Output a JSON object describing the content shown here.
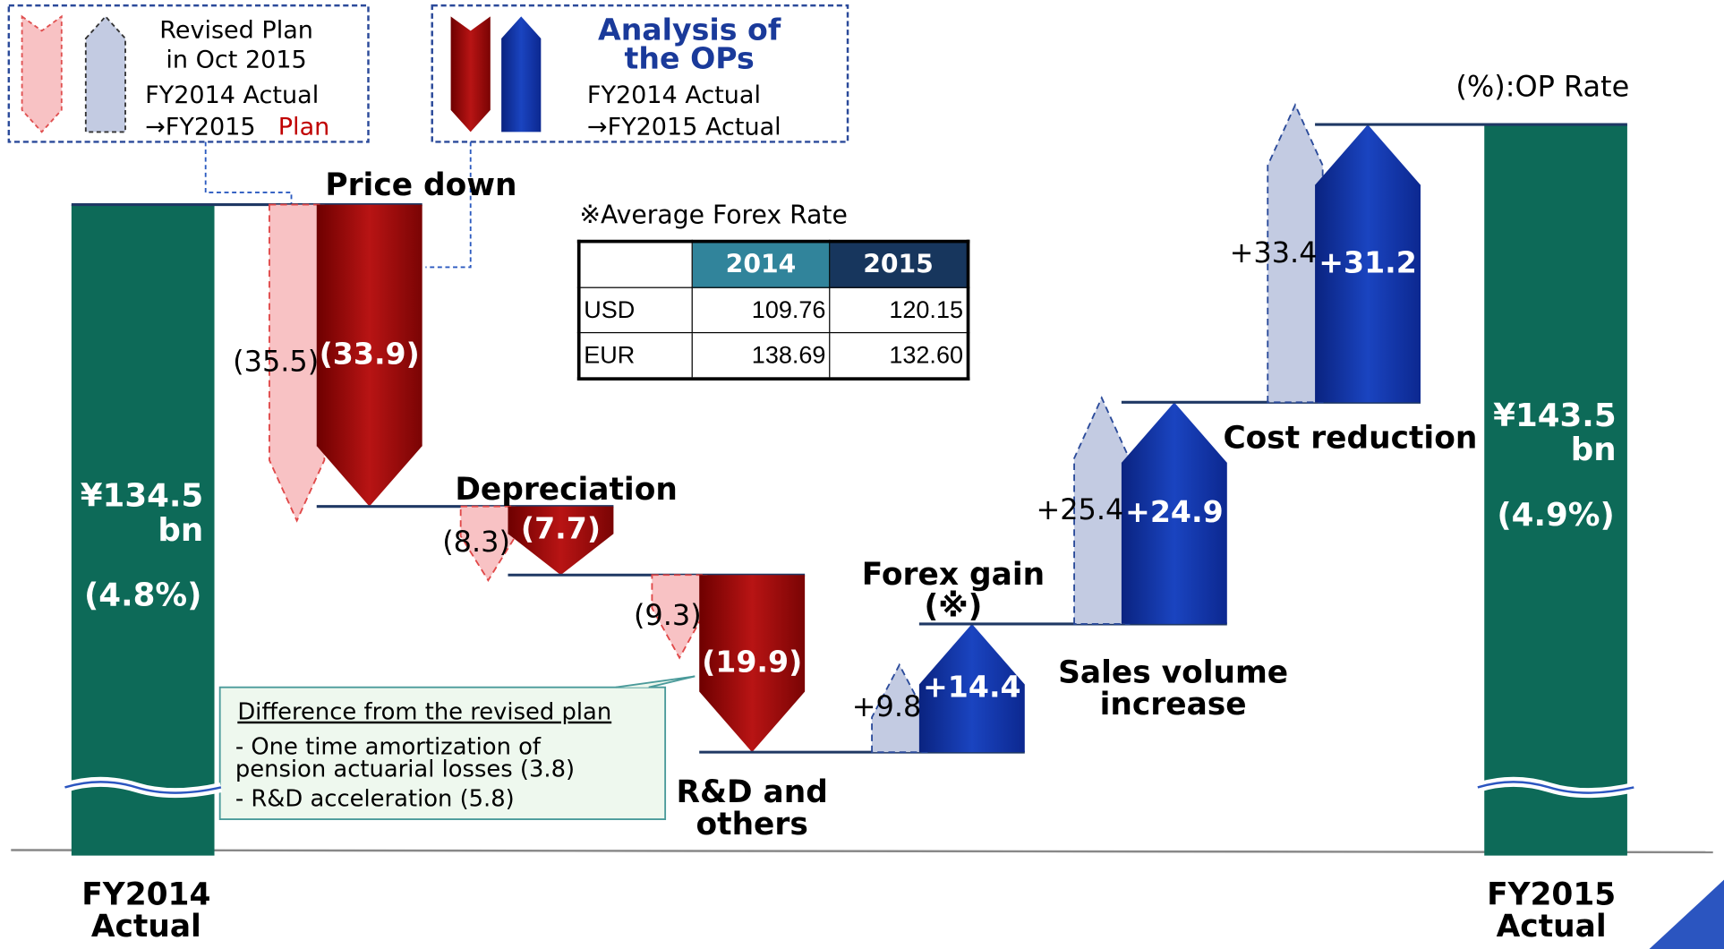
{
  "chart_data": {
    "type": "waterfall",
    "legend": {
      "plan": {
        "lines": [
          "Revised Plan",
          "in Oct 2015",
          "FY2014 Actual"
        ],
        "tail": "→FY2015",
        "tail_highlight": "Plan"
      },
      "actual": {
        "title": "Analysis of\nthe OPs",
        "lines": [
          "FY2014 Actual",
          "→FY2015 Actual"
        ]
      }
    },
    "note": "(%):OP Rate",
    "start": {
      "label": "FY2014\nActual",
      "value": 134.5,
      "value_label": "¥134.5\nbn",
      "rate": 4.8,
      "rate_label": "(4.8%)",
      "color": "#0d6a58"
    },
    "end": {
      "label": "FY2015\nActual",
      "value": 143.5,
      "value_label": "¥143.5\nbn",
      "rate": 4.9,
      "rate_label": "(4.9%)",
      "color": "#0d6a58"
    },
    "categories": [
      "Price down",
      "Depreciation",
      "R&D and\nothers",
      "Forex gain\n(※)",
      "Sales volume\nincrease",
      "Cost reduction"
    ],
    "series": [
      {
        "values": [
          -35.5,
          -8.3,
          -9.3,
          9.8,
          25.4,
          33.4
        ],
        "value_labels": [
          "(35.5)",
          "(8.3)",
          "(9.3)",
          "+9.8",
          "+25.4",
          "+33.4"
        ],
        "color_down": "#f8c2c4",
        "color_up": "#c3cbe2"
      },
      {
        "values": [
          -33.9,
          -7.7,
          -19.9,
          14.4,
          24.9,
          31.2
        ],
        "value_labels": [
          "(33.9)",
          "(7.7)",
          "(19.9)",
          "+14.4",
          "+24.9",
          "+31.2"
        ],
        "color_down": "#a30c0c",
        "color_up": "#1437a8"
      }
    ],
    "ylim": [
      62,
      146
    ],
    "forex_table": {
      "title": "※Average Forex Rate",
      "header": [
        "2014",
        "2015"
      ],
      "rows": [
        [
          "USD",
          "109.76",
          "120.15"
        ],
        [
          "EUR",
          "138.69",
          "132.60"
        ]
      ]
    },
    "annotation": {
      "title": "Difference from the revised plan",
      "items": [
        "- One time amortization of\n pension actuarial losses (3.8)",
        "- R&D acceleration (5.8)"
      ]
    }
  }
}
